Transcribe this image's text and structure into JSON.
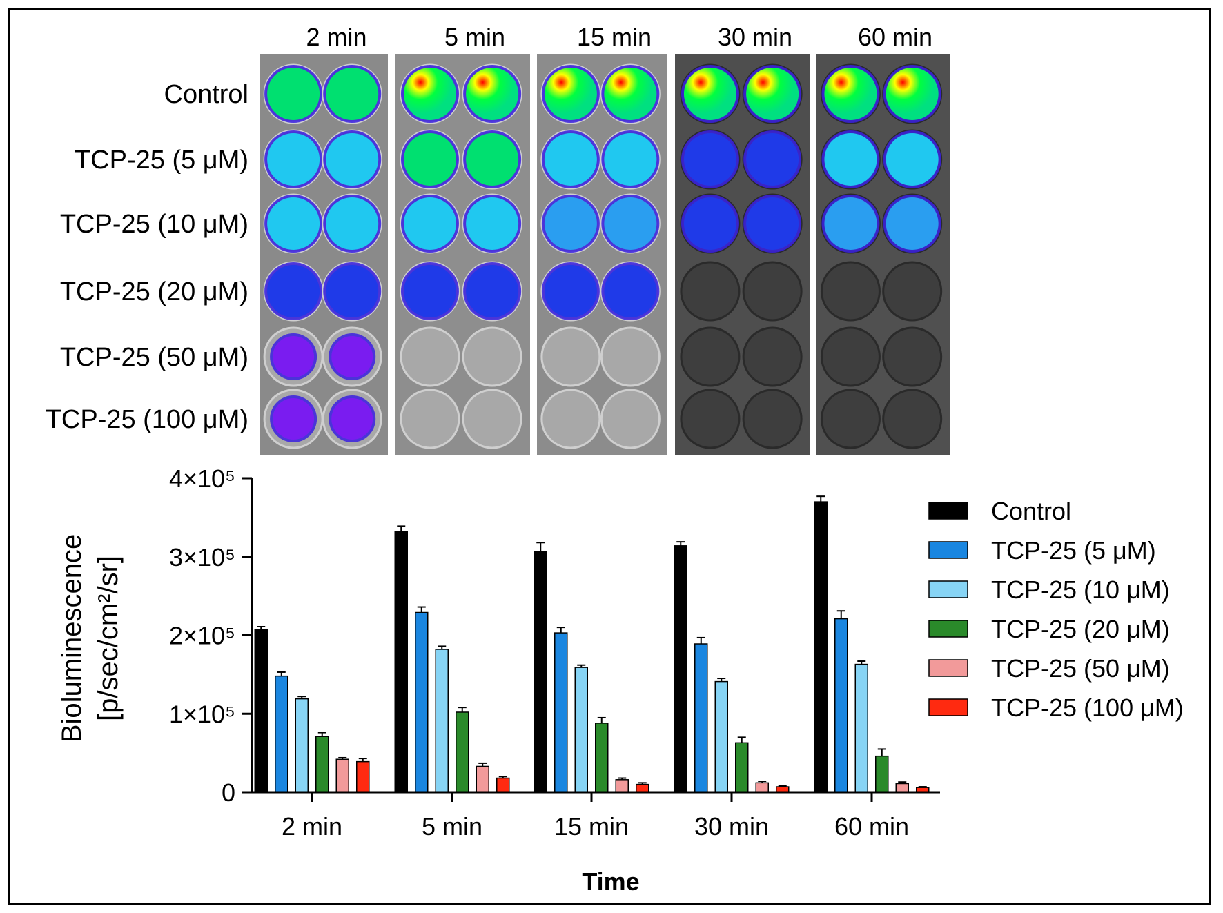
{
  "timepoints": [
    "2 min",
    "5 min",
    "15 min",
    "30 min",
    "60 min"
  ],
  "conditions": [
    "Control",
    "TCP-25 (5 μM)",
    "TCP-25 (10 μM)",
    "TCP-25 (20 μM)",
    "TCP-25 (50 μM)",
    "TCP-25 (100 μM)"
  ],
  "well_intensity_grid": [
    [
      0.8,
      0.92,
      0.9,
      0.95,
      1.0
    ],
    [
      0.55,
      0.7,
      0.6,
      0.4,
      0.55
    ],
    [
      0.5,
      0.58,
      0.48,
      0.3,
      0.48
    ],
    [
      0.3,
      0.3,
      0.28,
      0.0,
      0.0
    ],
    [
      0.18,
      0.0,
      0.0,
      0.0,
      0.0
    ],
    [
      0.15,
      0.0,
      0.0,
      0.0,
      0.0
    ]
  ],
  "chart_data": {
    "type": "bar",
    "categories": [
      "2 min",
      "5 min",
      "15 min",
      "30 min",
      "60 min"
    ],
    "xlabel": "Time",
    "ylabel": "Bioluminescence",
    "ylabel_units": "[p/sec/cm²/sr]",
    "ylim": [
      0,
      400000
    ],
    "ytick_values": [
      0,
      100000,
      200000,
      300000,
      400000
    ],
    "yticks": [
      "0",
      "1×10⁵",
      "2×10⁵",
      "3×10⁵",
      "4×10⁵"
    ],
    "grid": false,
    "legend_position": "right",
    "series": [
      {
        "name": "Control",
        "color": "#000000",
        "values": [
          207000,
          332000,
          307000,
          314000,
          370000
        ],
        "errors": [
          4000,
          7000,
          11000,
          5000,
          7000
        ]
      },
      {
        "name": "TCP-25 (5 μM)",
        "color": "#1a86e0",
        "values": [
          148000,
          229000,
          203000,
          189000,
          221000
        ],
        "errors": [
          5000,
          7000,
          7000,
          8000,
          10000
        ]
      },
      {
        "name": "TCP-25 (10 μM)",
        "color": "#87d4f5",
        "values": [
          119000,
          182000,
          159000,
          141000,
          163000
        ],
        "errors": [
          3000,
          4000,
          3000,
          4000,
          4000
        ]
      },
      {
        "name": "TCP-25 (20 μM)",
        "color": "#2a8a2a",
        "values": [
          71000,
          102000,
          88000,
          63000,
          46000
        ],
        "errors": [
          5000,
          6000,
          7000,
          7000,
          9000
        ]
      },
      {
        "name": "TCP-25 (50 μM)",
        "color": "#f29a9a",
        "values": [
          42000,
          33000,
          16000,
          12000,
          11000
        ],
        "errors": [
          2000,
          4000,
          2000,
          2000,
          2000
        ]
      },
      {
        "name": "TCP-25 (100 μM)",
        "color": "#ff2a10",
        "values": [
          39000,
          18000,
          10000,
          7000,
          6000
        ],
        "errors": [
          4000,
          2000,
          2000,
          1000,
          1000
        ]
      }
    ]
  }
}
